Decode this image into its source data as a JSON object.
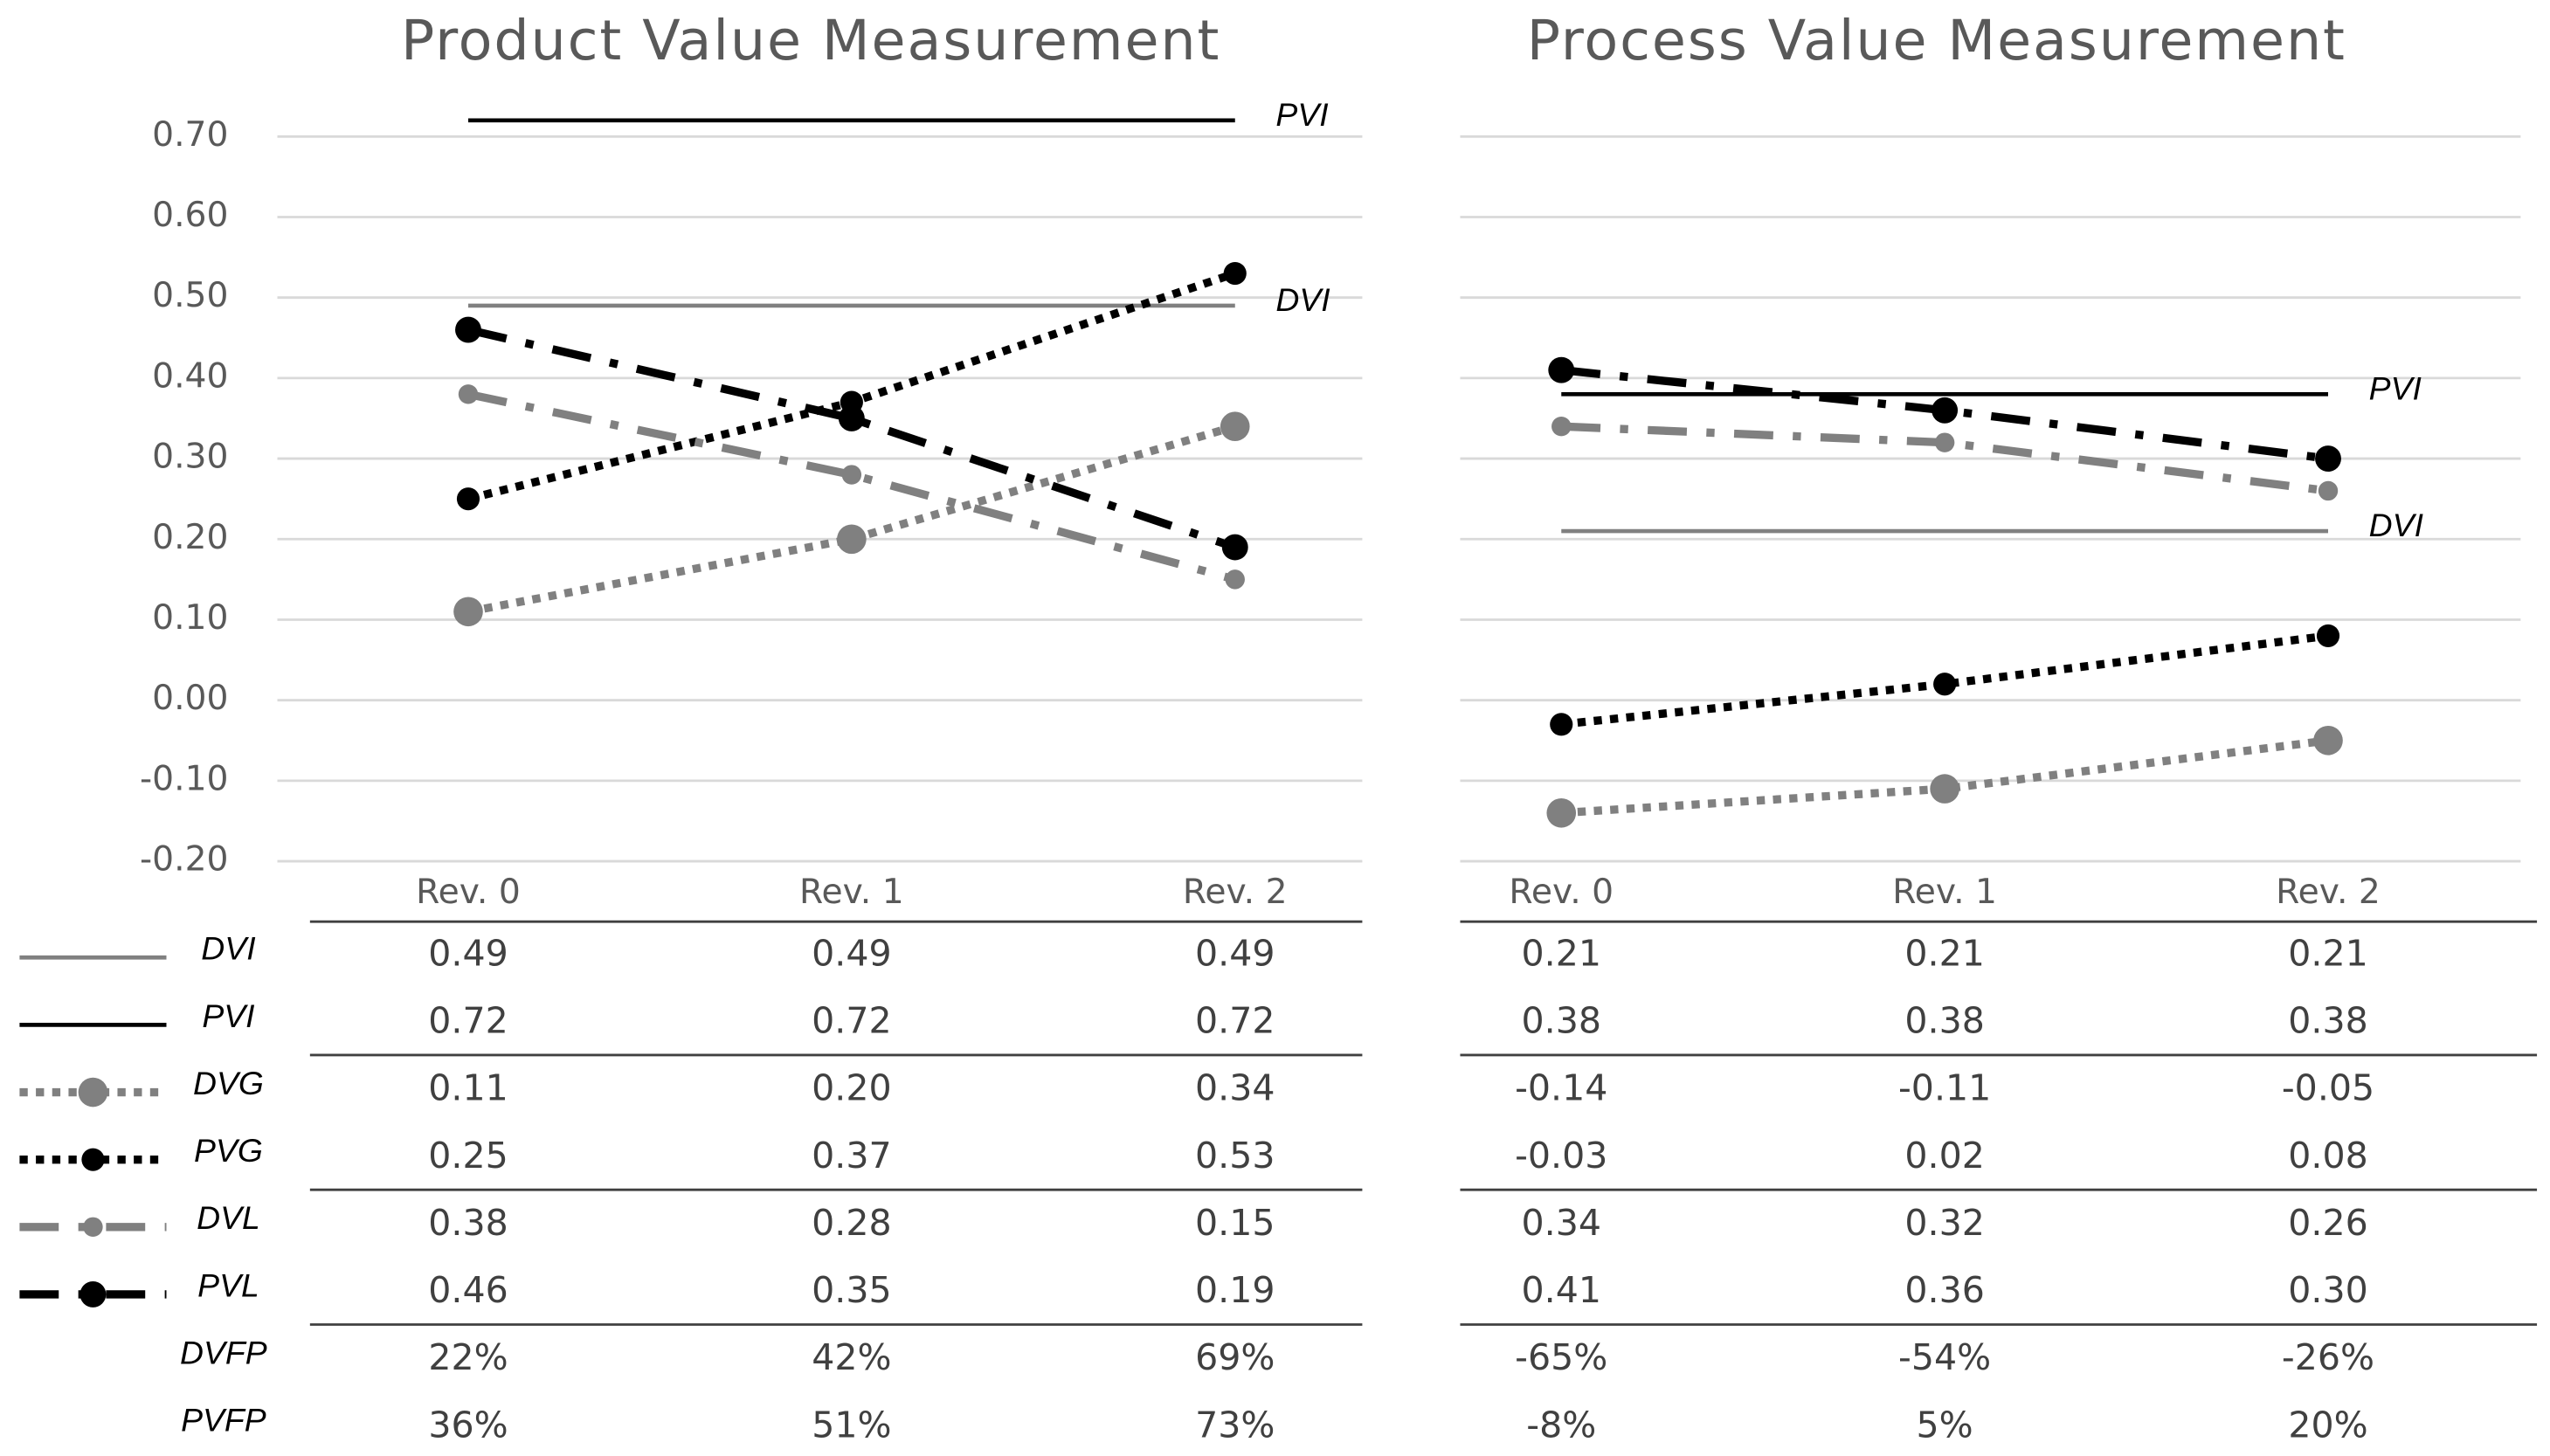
{
  "chart_data": [
    {
      "type": "line",
      "title": "Product Value Measurement",
      "categories": [
        "Rev. 0",
        "Rev. 1",
        "Rev. 2"
      ],
      "ylim": [
        -0.2,
        0.75
      ],
      "yticks": [
        {
          "value": 0.7,
          "label": "0.70"
        },
        {
          "value": 0.6,
          "label": "0.60"
        },
        {
          "value": 0.5,
          "label": "0.50"
        },
        {
          "value": 0.4,
          "label": "0.40"
        },
        {
          "value": 0.3,
          "label": "0.30"
        },
        {
          "value": 0.2,
          "label": "0.20"
        },
        {
          "value": 0.1,
          "label": "0.10"
        },
        {
          "value": 0,
          "label": "0.00"
        },
        {
          "value": -0.1,
          "label": "-0.10"
        },
        {
          "value": -0.2,
          "label": "-0.20"
        }
      ],
      "tick_labels": true,
      "grid": true,
      "series": [
        {
          "name": "DVI",
          "color": "#808080",
          "style": "solid",
          "values": [
            0.49,
            0.49,
            0.49
          ],
          "value_labels": [
            "0.49",
            "0.49",
            "0.49"
          ]
        },
        {
          "name": "PVI",
          "color": "#000000",
          "style": "solid",
          "values": [
            0.72,
            0.72,
            0.72
          ],
          "value_labels": [
            "0.72",
            "0.72",
            "0.72"
          ]
        },
        {
          "name": "DVG",
          "color": "#808080",
          "style": "dotted",
          "values": [
            0.11,
            0.2,
            0.34
          ],
          "value_labels": [
            "0.11",
            "0.20",
            "0.34"
          ]
        },
        {
          "name": "PVG",
          "color": "#000000",
          "style": "dotted",
          "values": [
            0.25,
            0.37,
            0.53
          ],
          "value_labels": [
            "0.25",
            "0.37",
            "0.53"
          ]
        },
        {
          "name": "DVL",
          "color": "#808080",
          "style": "dashdot",
          "values": [
            0.38,
            0.28,
            0.15
          ],
          "value_labels": [
            "0.38",
            "0.28",
            "0.15"
          ]
        },
        {
          "name": "PVL",
          "color": "#000000",
          "style": "dashdot",
          "values": [
            0.46,
            0.35,
            0.19
          ],
          "value_labels": [
            "0.46",
            "0.35",
            "0.19"
          ]
        }
      ],
      "footer_rows": [
        {
          "name": "DVFP",
          "cells": [
            "22%",
            "42%",
            "69%"
          ]
        },
        {
          "name": "PVFP",
          "cells": [
            "36%",
            "51%",
            "73%"
          ]
        }
      ]
    },
    {
      "type": "line",
      "title": "Process Value Measurement",
      "categories": [
        "Rev. 0",
        "Rev. 1",
        "Rev. 2"
      ],
      "ylim": [
        -0.2,
        0.75
      ],
      "yticks": [
        0.7,
        0.6,
        0.5,
        0.4,
        0.3,
        0.2,
        0.1,
        0,
        -0.1,
        -0.2
      ],
      "tick_labels": false,
      "grid": true,
      "series": [
        {
          "name": "DVI",
          "color": "#808080",
          "style": "solid",
          "values": [
            0.21,
            0.21,
            0.21
          ],
          "value_labels": [
            "0.21",
            "0.21",
            "0.21"
          ]
        },
        {
          "name": "PVI",
          "color": "#000000",
          "style": "solid",
          "values": [
            0.38,
            0.38,
            0.38
          ],
          "value_labels": [
            "0.38",
            "0.38",
            "0.38"
          ]
        },
        {
          "name": "DVG",
          "color": "#808080",
          "style": "dotted",
          "values": [
            -0.14,
            -0.11,
            -0.05
          ],
          "value_labels": [
            "-0.14",
            "-0.11",
            "-0.05"
          ]
        },
        {
          "name": "PVG",
          "color": "#000000",
          "style": "dotted",
          "values": [
            -0.03,
            0.02,
            0.08
          ],
          "value_labels": [
            "-0.03",
            "0.02",
            "0.08"
          ]
        },
        {
          "name": "DVL",
          "color": "#808080",
          "style": "dashdot",
          "values": [
            0.34,
            0.32,
            0.26
          ],
          "value_labels": [
            "0.34",
            "0.32",
            "0.26"
          ]
        },
        {
          "name": "PVL",
          "color": "#000000",
          "style": "dashdot",
          "values": [
            0.41,
            0.36,
            0.3
          ],
          "value_labels": [
            "0.41",
            "0.36",
            "0.30"
          ]
        }
      ],
      "footer_rows": [
        {
          "cells": [
            "-65%",
            "-54%",
            "-26%"
          ]
        },
        {
          "cells": [
            "-8%",
            "5%",
            "20%"
          ]
        }
      ]
    }
  ]
}
